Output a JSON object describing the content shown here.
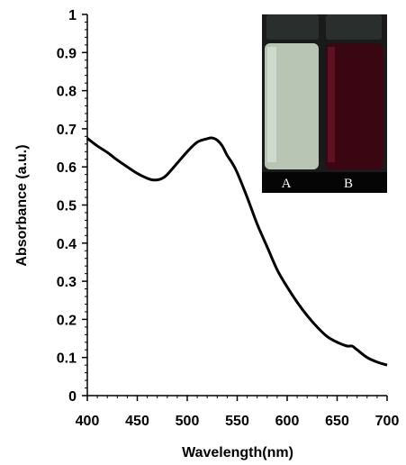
{
  "chart_data": {
    "type": "line",
    "xlabel": "Wavelength(nm)",
    "ylabel": "Absorbance (a.u.)",
    "xlim": [
      400,
      700
    ],
    "ylim": [
      0,
      1
    ],
    "x_ticks": [
      400,
      450,
      500,
      550,
      600,
      650,
      700
    ],
    "y_ticks": [
      0,
      0.1,
      0.2,
      0.3,
      0.4,
      0.5,
      0.6,
      0.7,
      0.8,
      0.9,
      1
    ],
    "y_tick_labels": [
      "0",
      "0.1",
      "0.2",
      "0.3",
      "0.4",
      "0.5",
      "0.6",
      "0.7",
      "0.8",
      "0.9",
      "1"
    ],
    "grid": false,
    "series": [
      {
        "color": "#000000",
        "x": [
          400,
          410,
          420,
          430,
          440,
          450,
          460,
          465,
          470,
          475,
          480,
          490,
          500,
          510,
          520,
          525,
          530,
          535,
          540,
          545,
          550,
          560,
          570,
          580,
          590,
          600,
          610,
          620,
          630,
          640,
          650,
          660,
          665,
          670,
          680,
          690,
          700
        ],
        "y": [
          0.675,
          0.655,
          0.638,
          0.618,
          0.6,
          0.583,
          0.57,
          0.566,
          0.566,
          0.57,
          0.58,
          0.61,
          0.64,
          0.665,
          0.674,
          0.676,
          0.67,
          0.655,
          0.63,
          0.61,
          0.585,
          0.52,
          0.45,
          0.39,
          0.33,
          0.285,
          0.245,
          0.21,
          0.18,
          0.155,
          0.14,
          0.13,
          0.13,
          0.12,
          0.1,
          0.088,
          0.08
        ]
      }
    ],
    "inset": {
      "labels": [
        "A",
        "B"
      ],
      "vial_colors": [
        "#b8c4b4",
        "#3a0612"
      ]
    }
  }
}
